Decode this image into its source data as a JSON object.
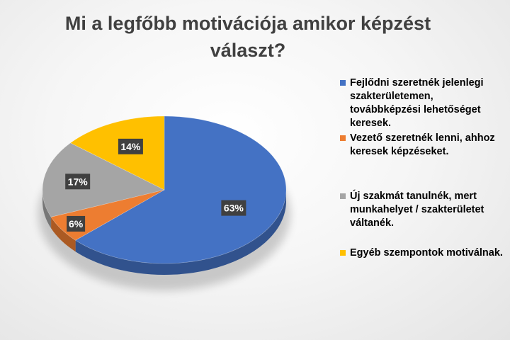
{
  "chart_data": {
    "type": "pie",
    "title": "Mi a legfőbb motivációja amikor képzést választ?",
    "slices": [
      {
        "label": "Fejlődni szeretnék jelenlegi szakterületemen, továbbképzési lehetőséget keresek.",
        "value": 63,
        "data_label": "63%",
        "color": "#4472C4"
      },
      {
        "label": "Vezető szeretnék lenni, ahhoz keresek képzéseket.",
        "value": 6,
        "data_label": "6%",
        "color": "#ED7D31"
      },
      {
        "label": "Új szakmát tanulnék, mert munkahelyet / szakterületet váltanék.",
        "value": 17,
        "data_label": "17%",
        "color": "#A5A5A5"
      },
      {
        "label": "Egyéb szempontok motiválnak.",
        "value": 14,
        "data_label": "14%",
        "color": "#FFC000"
      }
    ],
    "legend_position": "right"
  }
}
